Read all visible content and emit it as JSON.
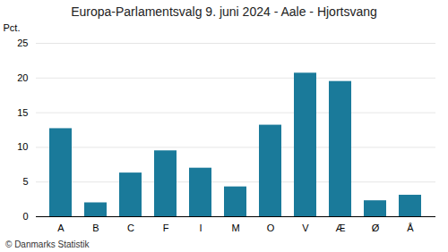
{
  "chart_data": {
    "type": "bar",
    "title": "Europa-Parlamentsvalg 9. juni 2024 - Aale - Hjortsvang",
    "ylabel": "Pct.",
    "caption": "© Danmarks Statistik",
    "categories": [
      "A",
      "B",
      "C",
      "F",
      "I",
      "M",
      "O",
      "V",
      "Æ",
      "Ø",
      "Å"
    ],
    "values": [
      12.7,
      2.0,
      6.3,
      9.5,
      7.0,
      4.3,
      13.2,
      20.7,
      19.5,
      2.3,
      3.1
    ],
    "color": "#1a7a9a",
    "ylim": [
      0,
      25
    ],
    "yticks": [
      0,
      5,
      10,
      15,
      20,
      25
    ],
    "grid": true
  }
}
